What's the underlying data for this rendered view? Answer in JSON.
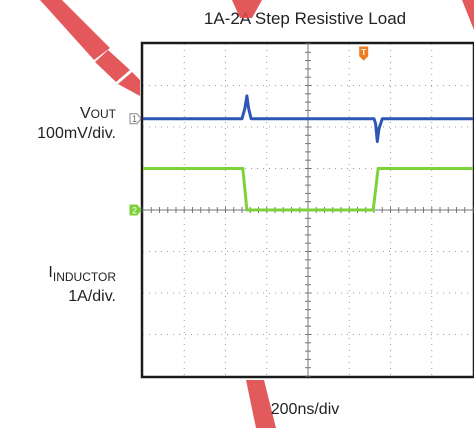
{
  "chart_data": {
    "type": "line",
    "title": "1A-2A Step Resistive Load",
    "xlabel": "200ns/div",
    "channels": [
      {
        "name_main": "V",
        "name_sub": "OUT",
        "scale": "100mV/div.",
        "color": "#2e57b5",
        "marker": "1",
        "baseline_div": 1.8,
        "points": [
          [
            0,
            0
          ],
          [
            2.4,
            0
          ],
          [
            2.47,
            0.25
          ],
          [
            2.52,
            0.55
          ],
          [
            2.56,
            0.25
          ],
          [
            2.62,
            0
          ],
          [
            5.6,
            0
          ],
          [
            5.64,
            -0.12
          ],
          [
            5.68,
            -0.55
          ],
          [
            5.72,
            -0.25
          ],
          [
            5.8,
            0
          ],
          [
            8,
            0
          ]
        ]
      },
      {
        "name_main": "I",
        "name_sub": "INDUCTOR",
        "scale": "1A/div.",
        "color": "#7dd23a",
        "marker": "2",
        "baseline_div": 4.0,
        "points": [
          [
            0,
            1
          ],
          [
            2.42,
            1
          ],
          [
            2.52,
            0
          ],
          [
            5.58,
            0
          ],
          [
            5.7,
            1
          ],
          [
            8,
            1
          ]
        ]
      }
    ],
    "trigger_marker": "T",
    "x_divisions": 8,
    "y_divisions": 8
  }
}
